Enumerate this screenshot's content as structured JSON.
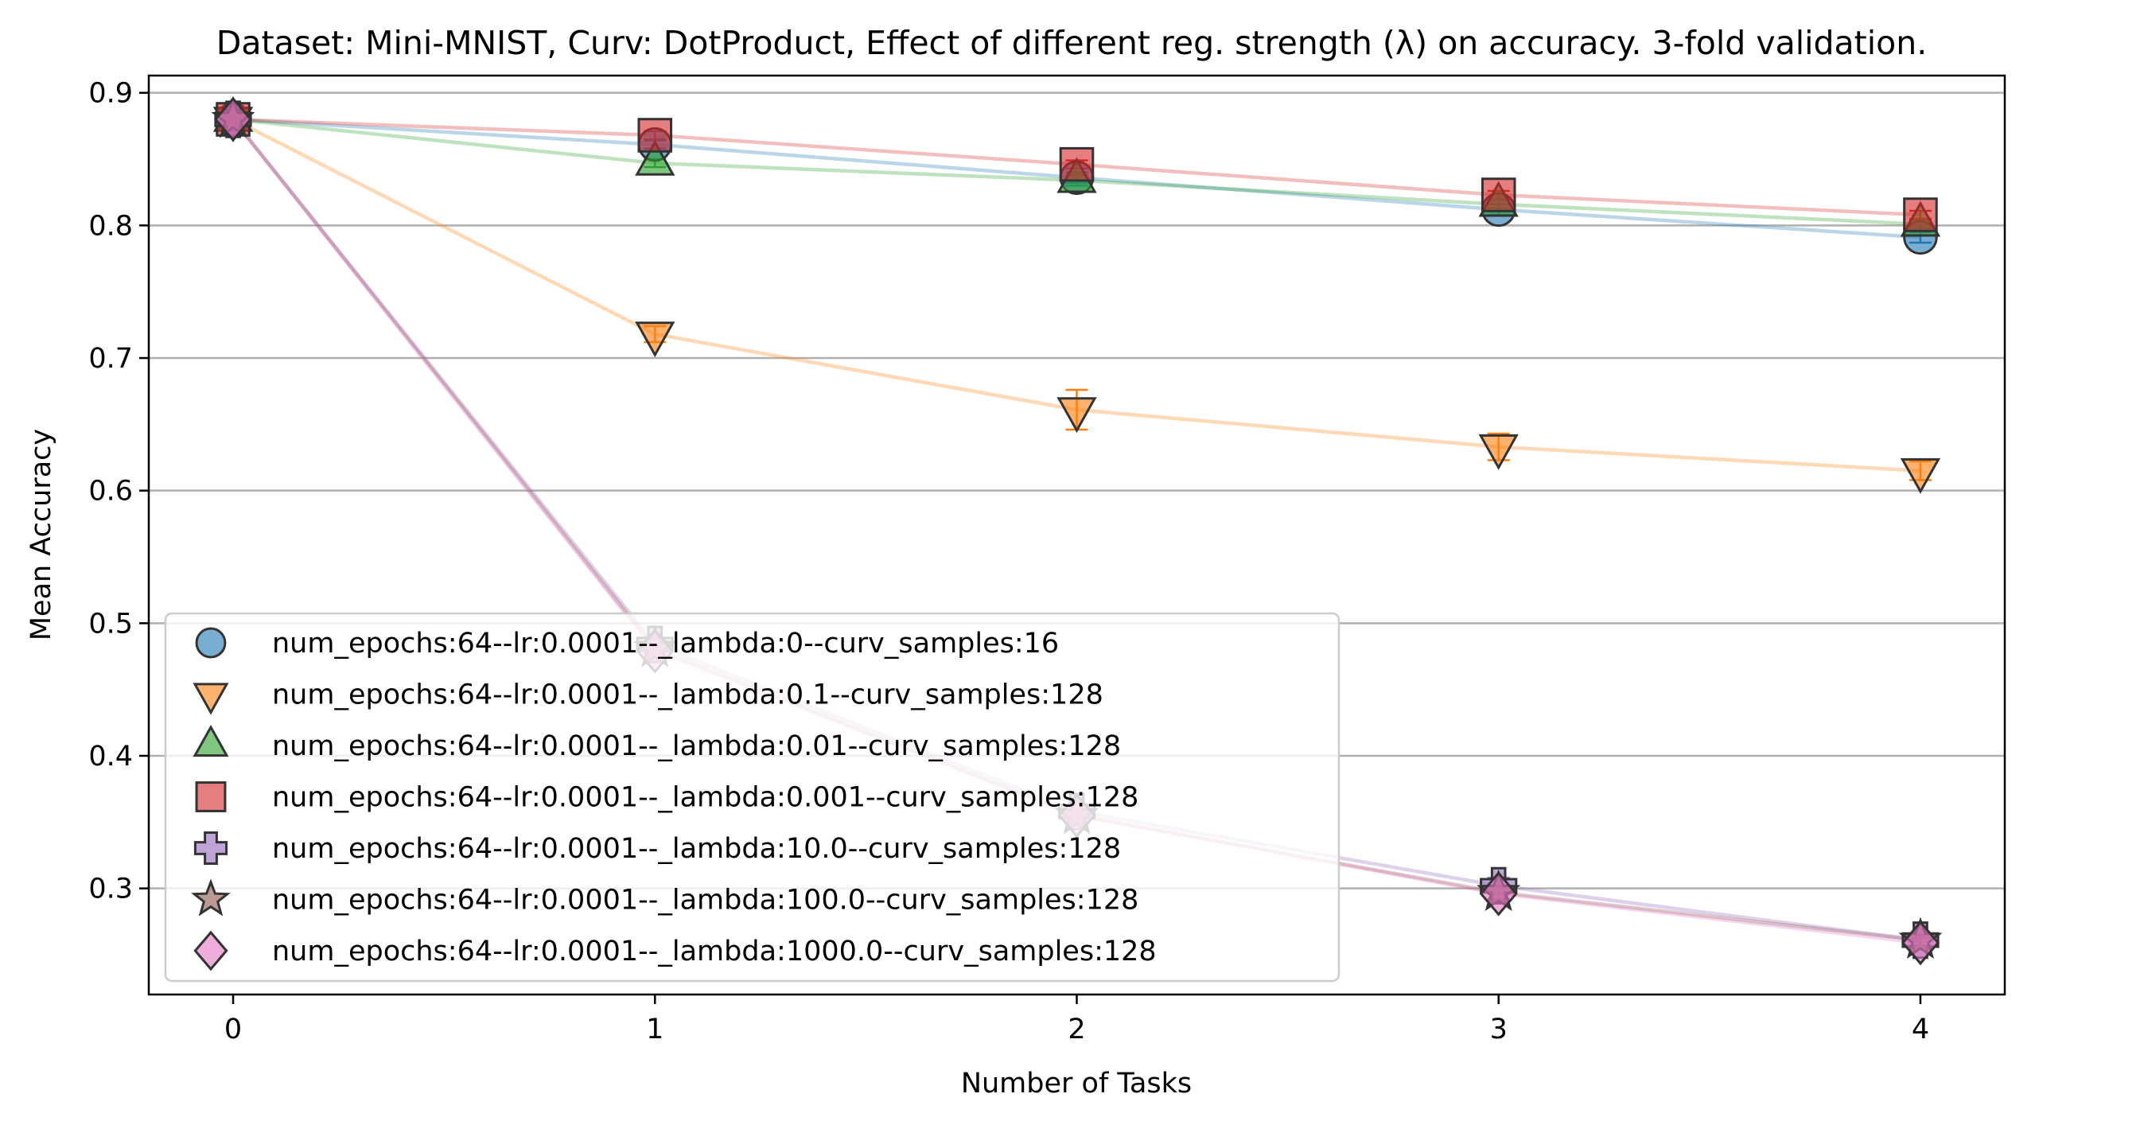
{
  "chart_data": {
    "type": "line",
    "title": "Dataset: Mini-MNIST, Curv: DotProduct, Effect of different reg. strength (λ) on accuracy. 3-fold validation.",
    "xlabel": "Number of Tasks",
    "ylabel": "Mean Accuracy",
    "x": [
      0,
      1,
      2,
      3,
      4
    ],
    "xticks": [
      "0",
      "1",
      "2",
      "3",
      "4"
    ],
    "yticks": [
      "0.3",
      "0.4",
      "0.5",
      "0.6",
      "0.7",
      "0.8",
      "0.9"
    ],
    "xlim": [
      -0.2,
      4.2
    ],
    "ylim": [
      0.22,
      0.913
    ],
    "grid": "horizontal",
    "legend_position": "lower-left",
    "series": [
      {
        "name": "num_epochs:64--lr:0.0001--_lambda:0--curv_samples:16",
        "values": [
          0.88,
          0.861,
          0.836,
          0.812,
          0.791
        ],
        "errors": [
          0.002,
          0.003,
          0.004,
          0.004,
          0.004
        ],
        "marker": "circle",
        "color": "#1f77b4"
      },
      {
        "name": "num_epochs:64--lr:0.0001--_lambda:0.1--curv_samples:128",
        "values": [
          0.88,
          0.718,
          0.661,
          0.633,
          0.615
        ],
        "errors": [
          0.002,
          0.006,
          0.015,
          0.01,
          0.007
        ],
        "marker": "triangle-down",
        "color": "#ff7f0e"
      },
      {
        "name": "num_epochs:64--lr:0.0001--_lambda:0.01--curv_samples:128",
        "values": [
          0.88,
          0.847,
          0.834,
          0.816,
          0.801
        ],
        "errors": [
          0.002,
          0.003,
          0.004,
          0.003,
          0.003
        ],
        "marker": "triangle-up",
        "color": "#2ca02c"
      },
      {
        "name": "num_epochs:64--lr:0.0001--_lambda:0.001--curv_samples:128",
        "values": [
          0.88,
          0.868,
          0.846,
          0.823,
          0.808
        ],
        "errors": [
          0.002,
          0.003,
          0.003,
          0.003,
          0.003
        ],
        "marker": "square",
        "color": "#d62728"
      },
      {
        "name": "num_epochs:64--lr:0.0001--_lambda:10.0--curv_samples:128",
        "values": [
          0.88,
          0.484,
          0.358,
          0.302,
          0.261
        ],
        "errors": [
          0.002,
          0.004,
          0.004,
          0.006,
          0.004
        ],
        "marker": "plus",
        "color": "#9467bd"
      },
      {
        "name": "num_epochs:64--lr:0.0001--_lambda:100.0--curv_samples:128",
        "values": [
          0.88,
          0.481,
          0.355,
          0.297,
          0.261
        ],
        "errors": [
          0.002,
          0.004,
          0.004,
          0.005,
          0.004
        ],
        "marker": "star",
        "color": "#8c564b"
      },
      {
        "name": "num_epochs:64--lr:0.0001--_lambda:1000.0--curv_samples:128",
        "values": [
          0.88,
          0.479,
          0.355,
          0.296,
          0.259
        ],
        "errors": [
          0.002,
          0.004,
          0.004,
          0.005,
          0.004
        ],
        "marker": "diamond",
        "color": "#e377c2"
      }
    ]
  }
}
